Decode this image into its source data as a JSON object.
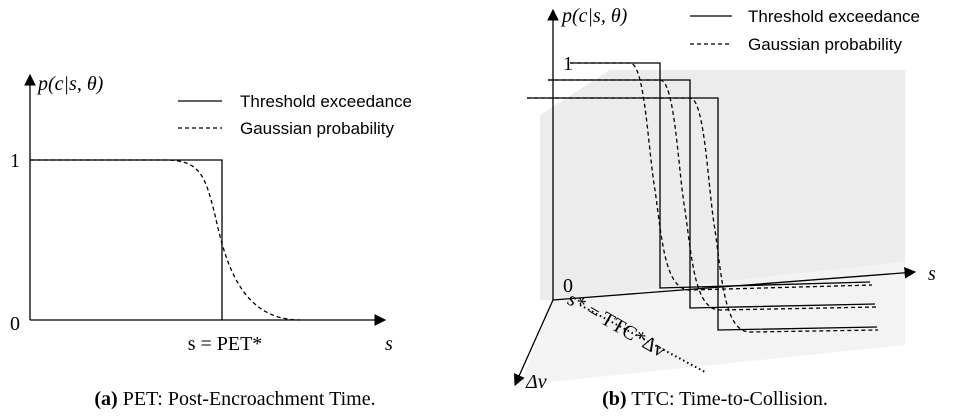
{
  "panels": [
    {
      "y_label": "p(c|s, θ)",
      "legend": [
        "Threshold exceedance",
        "Gaussian probability"
      ],
      "ticks": [
        "1",
        "0"
      ],
      "x_marker": "s = PET*",
      "x_label": "s",
      "caption": {
        "label": "(a)",
        "text": "PET: Post-Encroachment Time."
      }
    },
    {
      "y_label": "p(c|s, θ)",
      "legend": [
        "Threshold exceedance",
        "Gaussian probability"
      ],
      "ticks": [
        "1",
        "0"
      ],
      "x_marker": "s* = TTC*Δv",
      "x_label": "s",
      "z_label": "Δv",
      "caption": {
        "label": "(b)",
        "text": "TTC: Time-to-Collision."
      }
    }
  ]
}
